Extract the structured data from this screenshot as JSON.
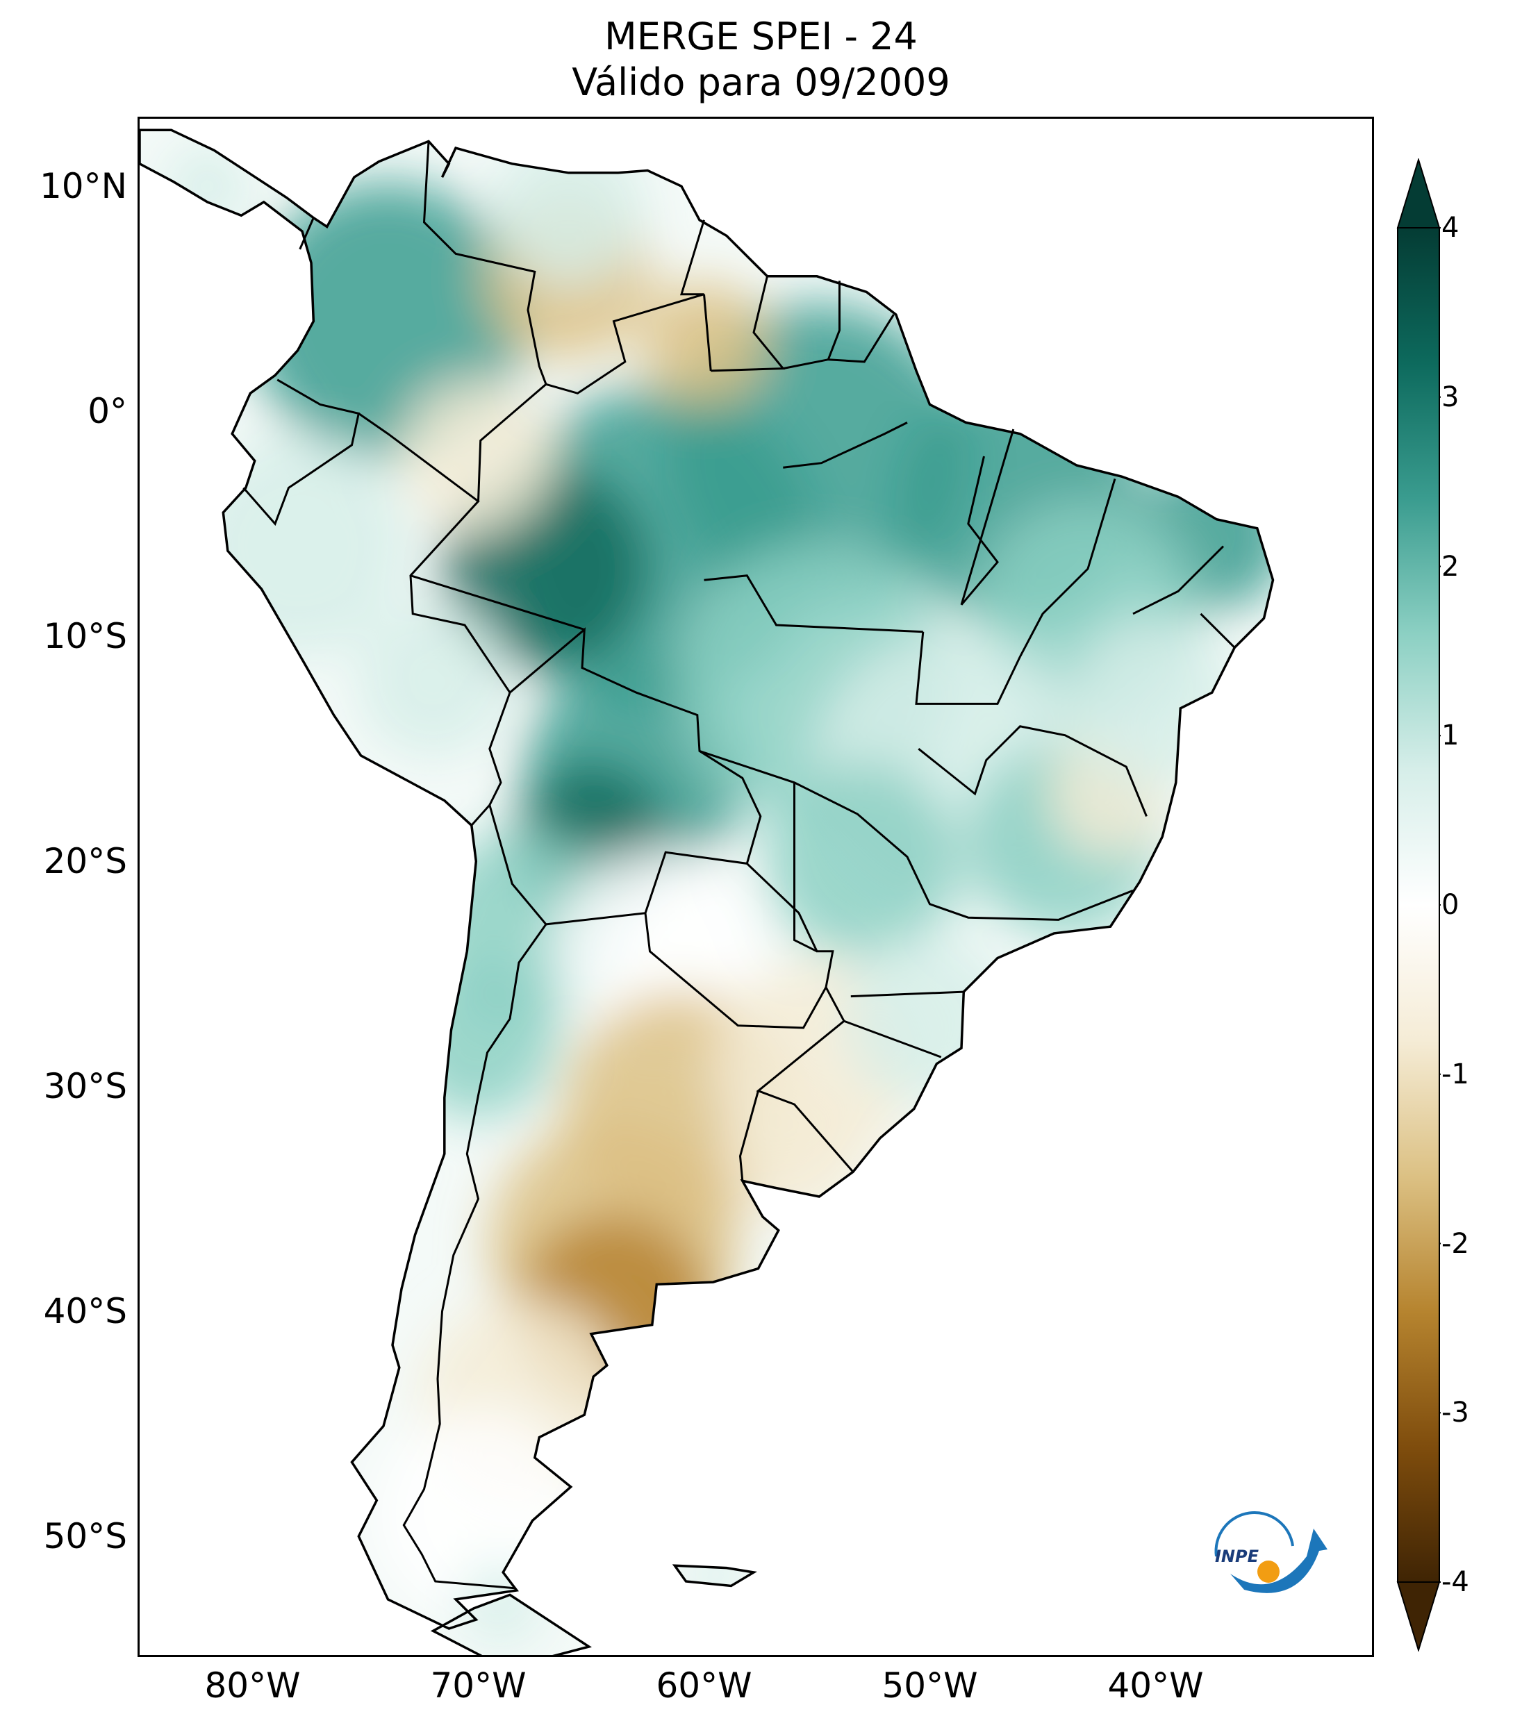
{
  "title": {
    "line1": "MERGE   SPEI - 24",
    "line2": "Válido para 09/2009"
  },
  "map": {
    "region": "South America",
    "projection": "Plate Carrée",
    "lon_range": [
      -85,
      -32
    ],
    "lat_range": [
      -55,
      13
    ],
    "lat_ticks": [
      {
        "value": 10,
        "label": "10°N"
      },
      {
        "value": 0,
        "label": "0°"
      },
      {
        "value": -10,
        "label": "10°S"
      },
      {
        "value": -20,
        "label": "20°S"
      },
      {
        "value": -30,
        "label": "30°S"
      },
      {
        "value": -40,
        "label": "40°S"
      },
      {
        "value": -50,
        "label": "50°S"
      }
    ],
    "lon_ticks": [
      {
        "value": -80,
        "label": "80°W"
      },
      {
        "value": -70,
        "label": "70°W"
      },
      {
        "value": -60,
        "label": "60°W"
      },
      {
        "value": -50,
        "label": "50°W"
      },
      {
        "value": -40,
        "label": "40°W"
      }
    ],
    "field_summary": [
      {
        "region": "Northern Brazil / Amazon",
        "spei": 2.0
      },
      {
        "region": "Western Amazon (Acre-Amazonas)",
        "spei": 2.8
      },
      {
        "region": "Bolivian lowlands",
        "spei": 2.5
      },
      {
        "region": "Northeast Brazil coast",
        "spei": 2.3
      },
      {
        "region": "Andes / northern Chile-Argentina",
        "spei": 1.7
      },
      {
        "region": "Central Brazil",
        "spei": 0.5
      },
      {
        "region": "Venezuela southern",
        "spei": -1.2
      },
      {
        "region": "Southern Brazil / Uruguay",
        "spei": -1.0
      },
      {
        "region": "Central Argentina / Pampas",
        "spei": -1.6
      },
      {
        "region": "Northern Patagonia",
        "spei": -2.2
      },
      {
        "region": "Southern Patagonia",
        "spei": -0.3
      }
    ]
  },
  "colorbar": {
    "ticks": [
      "4",
      "3",
      "2",
      "1",
      "0",
      "-1",
      "-2",
      "-3",
      "-4"
    ],
    "vmin": -4,
    "vmax": 4,
    "extend": "both",
    "colors": [
      "#3f2404",
      "#7f4d0d",
      "#b6842f",
      "#dcc184",
      "#f5ecd6",
      "#ffffff",
      "#d6eee9",
      "#8cd0c3",
      "#3a9c8f",
      "#0d6a5d",
      "#043c34"
    ]
  },
  "logo": {
    "text": "INPE",
    "colors": {
      "arc": "#1c76ba",
      "dot": "#f29d12"
    }
  }
}
